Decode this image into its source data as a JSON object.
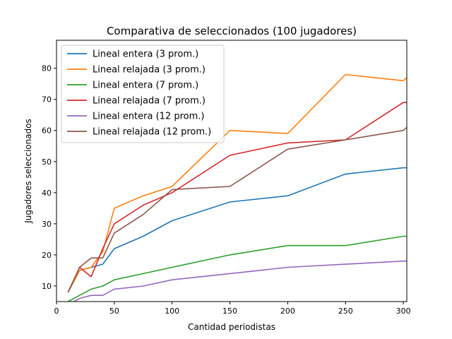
{
  "chart_data": {
    "type": "line",
    "title": "Comparativa de seleccionados (100 jugadores)",
    "xlabel": "Cantidad periodistas",
    "ylabel": "Jugadores seleccionados",
    "xlim": [
      0,
      303
    ],
    "ylim": [
      5,
      89
    ],
    "xticks": [
      0,
      50,
      100,
      150,
      200,
      250,
      300
    ],
    "yticks": [
      10,
      20,
      30,
      40,
      50,
      60,
      70,
      80
    ],
    "grid": false,
    "legend_position": "top-left",
    "x": [
      10,
      20,
      30,
      40,
      50,
      75,
      100,
      150,
      200,
      250,
      300,
      303
    ],
    "series": [
      {
        "name": "Lineal entera (3 prom.)",
        "color": "#1f77b4",
        "values": [
          8,
          15,
          16,
          17,
          22,
          26,
          31,
          37,
          39,
          46,
          48,
          48
        ]
      },
      {
        "name": "Lineal relajada (3 prom.)",
        "color": "#ff7f0e",
        "values": [
          8,
          15,
          16,
          21,
          35,
          39,
          42,
          60,
          59,
          78,
          76,
          77
        ]
      },
      {
        "name": "Lineal entera (7 prom.)",
        "color": "#2ca02c",
        "values": [
          5,
          7,
          9,
          10,
          12,
          14,
          16,
          20,
          23,
          23,
          26,
          26
        ]
      },
      {
        "name": "Lineal relajada (7 prom.)",
        "color": "#d62728",
        "values": [
          8,
          16,
          13,
          22,
          30,
          36,
          40,
          52,
          56,
          57,
          69,
          69
        ]
      },
      {
        "name": "Lineal entera (12 prom.)",
        "color": "#9467bd",
        "values": [
          4,
          6,
          7,
          7,
          9,
          10,
          12,
          14,
          16,
          17,
          18,
          18
        ]
      },
      {
        "name": "Lineal relajada (12 prom.)",
        "color": "#8c564b",
        "values": [
          8,
          16,
          19,
          19,
          27,
          33,
          41,
          42,
          54,
          57,
          60,
          61
        ]
      }
    ]
  }
}
